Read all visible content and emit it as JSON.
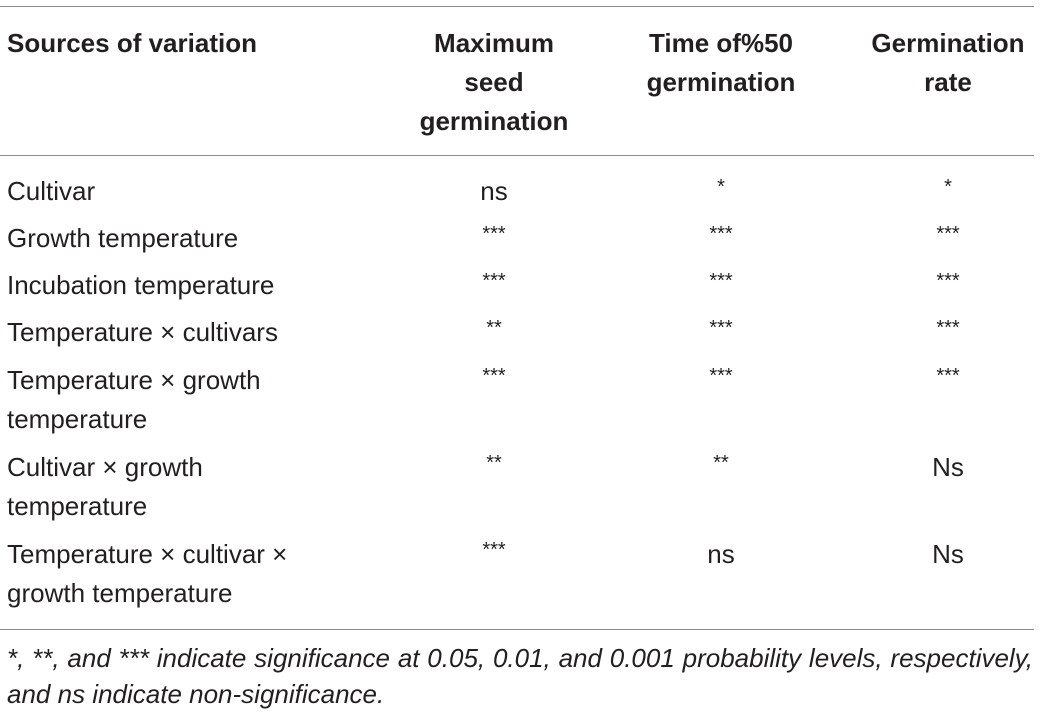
{
  "table": {
    "headers": [
      "Sources of variation",
      "Maximum seed germination",
      "Time of%50 germination",
      "Germination rate"
    ],
    "rows": [
      {
        "source": "Cultivar",
        "max_seed_germination": "ns",
        "time_50_germination": "*",
        "germination_rate": "*"
      },
      {
        "source": "Growth temperature",
        "max_seed_germination": "***",
        "time_50_germination": "***",
        "germination_rate": "***"
      },
      {
        "source": "Incubation temperature",
        "max_seed_germination": "***",
        "time_50_germination": "***",
        "germination_rate": "***"
      },
      {
        "source": "Temperature × cultivars",
        "max_seed_germination": "**",
        "time_50_germination": "***",
        "germination_rate": "***"
      },
      {
        "source": "Temperature × growth temperature",
        "max_seed_germination": "***",
        "time_50_germination": "***",
        "germination_rate": "***"
      },
      {
        "source": "Cultivar ×  growth temperature",
        "max_seed_germination": "**",
        "time_50_germination": "**",
        "germination_rate": "Ns"
      },
      {
        "source": "Temperature × cultivar × growth temperature",
        "max_seed_germination": "***",
        "time_50_germination": "ns",
        "germination_rate": "Ns"
      }
    ],
    "footnote": "*, **, and *** indicate significance at 0.05, 0.01, and 0.001 probability levels, respectively, and ns indicate non-significance."
  }
}
